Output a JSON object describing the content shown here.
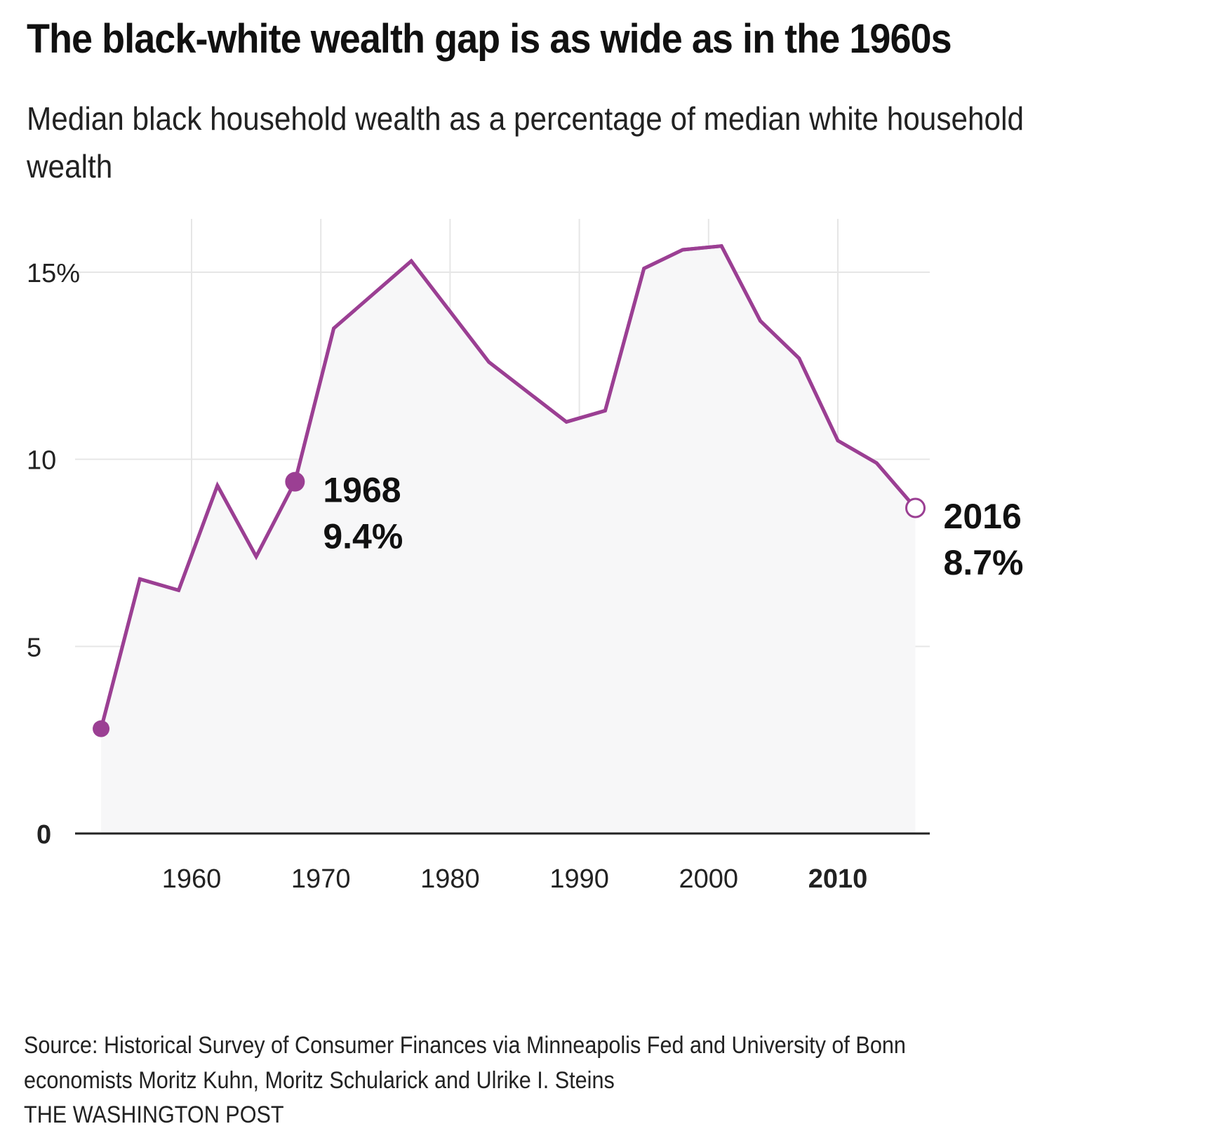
{
  "header": {
    "title": "The black-white wealth gap is as wide as in the 1960s",
    "subtitle": "Median black household wealth as a percentage of median white household wealth"
  },
  "colors": {
    "line": "#9b3f93",
    "area_fill": "#f7f7f8",
    "grid": "#e6e6e6",
    "baseline": "#222222",
    "text": "#111111"
  },
  "chart_data": {
    "type": "area",
    "title": "The black-white wealth gap is as wide as in the 1960s",
    "subtitle": "Median black household wealth as a percentage of median white household wealth",
    "xlabel": "",
    "ylabel": "",
    "x": [
      1953,
      1956,
      1959,
      1962,
      1965,
      1968,
      1971,
      1977,
      1983,
      1989,
      1992,
      1995,
      1998,
      2001,
      2004,
      2007,
      2010,
      2013,
      2016
    ],
    "series": [
      {
        "name": "Black median wealth as % of white median wealth",
        "values": [
          2.8,
          6.8,
          6.5,
          9.3,
          7.4,
          9.4,
          13.5,
          15.3,
          12.6,
          11.0,
          11.3,
          15.1,
          15.6,
          15.7,
          13.7,
          12.7,
          10.5,
          9.9,
          8.7
        ]
      }
    ],
    "xlim": [
      1951,
      2018
    ],
    "ylim": [
      0,
      16.5
    ],
    "xticks": [
      1960,
      1970,
      1980,
      1990,
      2000,
      2010
    ],
    "xtick_labels": [
      "1960",
      "1970",
      "1980",
      "1990",
      "2000",
      "2010"
    ],
    "bold_xtick": "2010",
    "yticks": [
      0,
      5,
      10,
      15
    ],
    "ytick_labels": [
      "0",
      "5",
      "10",
      "15%"
    ],
    "grid": true,
    "annotations": [
      {
        "year": 1968,
        "value": 9.4,
        "label_year": "1968",
        "label_value": "9.4%",
        "marker": "filled"
      },
      {
        "year": 2016,
        "value": 8.7,
        "label_year": "2016",
        "label_value": "8.7%",
        "marker": "hollow"
      }
    ],
    "start_marker": {
      "year": 1953,
      "value": 2.8,
      "marker": "filled"
    }
  },
  "footer": {
    "source_line1": "Source: Historical Survey of Consumer Finances via Minneapolis Fed and University of Bonn",
    "source_line2": "economists Moritz Kuhn, Moritz Schularick and Ulrike I. Steins",
    "credit": "THE WASHINGTON POST"
  }
}
